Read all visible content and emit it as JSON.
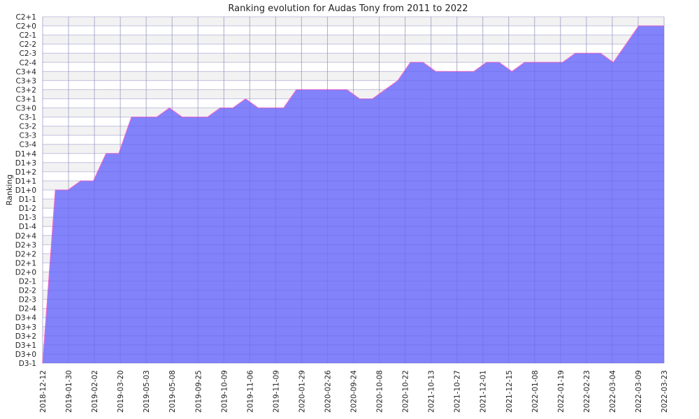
{
  "chart_data": {
    "type": "area",
    "title": "Ranking evolution for Audas Tony from 2011 to 2022",
    "xlabel": "",
    "ylabel": "Ranking",
    "grid": true,
    "y_categories": [
      "D3-1",
      "D3+0",
      "D3+1",
      "D3+2",
      "D3+3",
      "D3+4",
      "D2-4",
      "D2-3",
      "D2-2",
      "D2-1",
      "D2+0",
      "D2+1",
      "D2+2",
      "D2+3",
      "D2+4",
      "D1-4",
      "D1-3",
      "D1-2",
      "D1-1",
      "D1+0",
      "D1+1",
      "D1+2",
      "D1+3",
      "D1+4",
      "C3-4",
      "C3-3",
      "C3-2",
      "C3-1",
      "C3+0",
      "C3+1",
      "C3+2",
      "C3+3",
      "C3+4",
      "C2-4",
      "C2-3",
      "C2-2",
      "C2-1",
      "C2+0",
      "C2+1"
    ],
    "x_tick_labels": [
      "2018-12-12",
      "2019-01-30",
      "2019-02-02",
      "2019-03-20",
      "2019-05-03",
      "2019-05-08",
      "2019-09-25",
      "2019-10-09",
      "2019-11-06",
      "2019-11-09",
      "2020-01-29",
      "2020-02-26",
      "2020-09-24",
      "2020-10-08",
      "2020-10-22",
      "2021-10-13",
      "2021-10-27",
      "2021-12-01",
      "2021-12-15",
      "2022-01-08",
      "2022-01-19",
      "2022-02-23",
      "2022-03-04",
      "2022-03-09",
      "2022-03-23"
    ],
    "series": [
      {
        "values": [
          "D3-1",
          "D1+0",
          "D1+0",
          "D1+1",
          "D1+1",
          "D1+4",
          "D1+4",
          "C3-1",
          "C3-1",
          "C3-1",
          "C3+0",
          "C3-1",
          "C3-1",
          "C3-1",
          "C3+0",
          "C3+0",
          "C3+1",
          "C3+0",
          "C3+0",
          "C3+0",
          "C3+2",
          "C3+2",
          "C3+2",
          "C3+2",
          "C3+2",
          "C3+1",
          "C3+1",
          "C3+2",
          "C3+3",
          "C2-4",
          "C2-4",
          "C3+4",
          "C3+4",
          "C3+4",
          "C3+4",
          "C2-4",
          "C2-4",
          "C3+4",
          "C2-4",
          "C2-4",
          "C2-4",
          "C2-4",
          "C2-3",
          "C2-3",
          "C2-3",
          "C2-4",
          "C2-2",
          "C2+0",
          "C2+0",
          "C2+0"
        ]
      }
    ],
    "colors": {
      "fill": "#7b7bfb",
      "line": "#ff66cc",
      "grid": "#cccccc",
      "band": "#f2f2f2"
    }
  }
}
